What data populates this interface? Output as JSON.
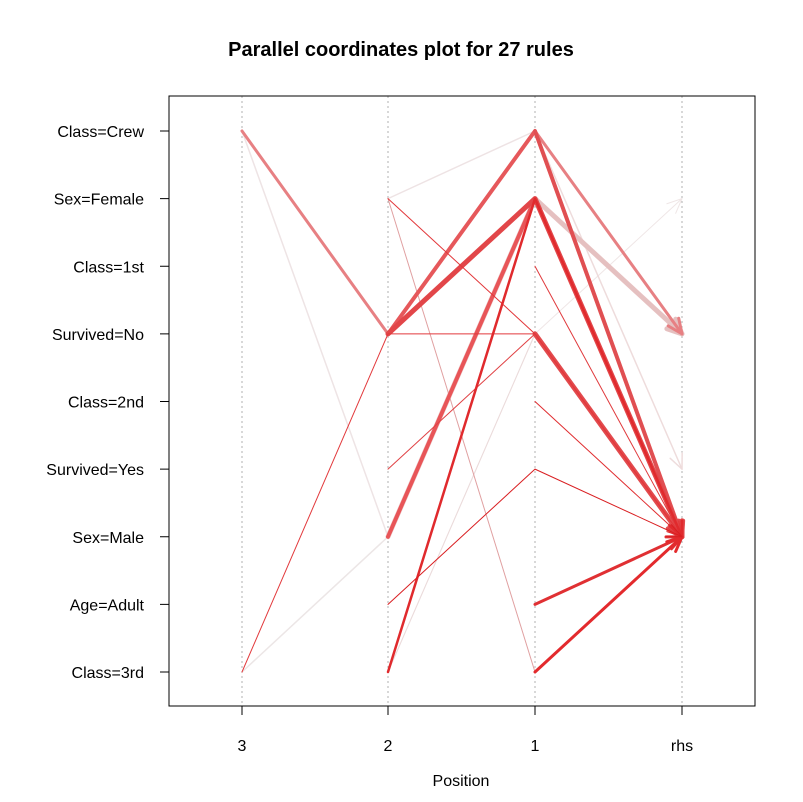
{
  "chart_data": {
    "type": "parallel-coordinates",
    "title": "Parallel coordinates plot for 27 rules",
    "xlabel": "Position",
    "x_ticks": [
      "3",
      "2",
      "1",
      "rhs"
    ],
    "y_categories": [
      "Class=Crew",
      "Sex=Female",
      "Class=1st",
      "Survived=No",
      "Class=2nd",
      "Survived=Yes",
      "Sex=Male",
      "Age=Adult",
      "Class=3rd"
    ],
    "grid": "vertical dotted lines at each position",
    "arrow_color_scale": [
      "#eeeeee",
      "#e41a1c"
    ],
    "rules": [
      {
        "path": [
          "Class=Crew",
          "Sex=Male"
        ],
        "color": "#e04f52",
        "width": 3.5
      },
      {
        "path": [
          "Class=Crew",
          "Survived=No"
        ],
        "color": "#ecdfe0",
        "width": 1.5
      },
      {
        "path": [
          "Sex=Female",
          "Class=Crew",
          "Survived=No"
        ],
        "color": "#eee3e4",
        "width": 1.5
      },
      {
        "path": [
          "Class=Crew",
          "Survived=Yes"
        ],
        "color": "#eedcdc",
        "width": 1.5
      },
      {
        "path": [
          "Survived=No",
          "Sex=Female",
          "Survived=No"
        ],
        "color": "#e5c0c0",
        "width": 4.5
      },
      {
        "path": [
          "Sex=Male",
          "Sex=Female",
          "Sex=Male"
        ],
        "color": "#e85558",
        "width": 4
      },
      {
        "path": [
          "Survived=No",
          "Sex=Female",
          "Sex=Male"
        ],
        "color": "#e24649",
        "width": 5
      },
      {
        "path": [
          "Sex=Male",
          "Sex=Female",
          "Survived=No"
        ],
        "color": "#eccaca",
        "width": 5
      },
      {
        "path": [
          "Class=Crew",
          "Sex=Male",
          "Sex=Female",
          "Survived=No"
        ],
        "color": "#eee4e5",
        "width": 1.5
      },
      {
        "path": [
          "Class=Crew",
          "Survived=No",
          "Class=Crew",
          "Survived=No"
        ],
        "color": "#e78083",
        "width": 3
      },
      {
        "path": [
          "Survived=No",
          "Class=Crew",
          "Sex=Male"
        ],
        "color": "#e56e70",
        "width": 3
      },
      {
        "path": [
          "Sex=Female",
          "Survived=No",
          "Sex=Male"
        ],
        "color": "#e2373a",
        "width": 1
      },
      {
        "path": [
          "Sex=Female",
          "Class=3rd",
          "Sex=Male"
        ],
        "color": "#e0a0a1",
        "width": 1
      },
      {
        "path": [
          "Class=3rd",
          "Sex=Female",
          "Sex=Male"
        ],
        "color": "#e02a2d",
        "width": 2.5
      },
      {
        "path": [
          "Class=3rd",
          "Sex=Male",
          "Sex=Female",
          "Sex=Male"
        ],
        "color": "#ece6e6",
        "width": 1.5
      },
      {
        "path": [
          "Class=3rd",
          "Survived=No",
          "Survived=No",
          "Sex=Male"
        ],
        "color": "#e2393c",
        "width": 1
      },
      {
        "path": [
          "Survived=No",
          "Sex=Male"
        ],
        "color": "#e24a4d",
        "width": 5
      },
      {
        "path": [
          "Class=3rd",
          "Survived=No",
          "Sex=Male"
        ],
        "color": "#ebdbdb",
        "width": 1
      },
      {
        "path": [
          "Survived=No",
          "Class=Crew",
          "Sex=Male"
        ],
        "color": "#e6585b",
        "width": 4
      },
      {
        "path": [
          "Class=3rd",
          "Sex=Male"
        ],
        "color": "#e32a2d",
        "width": 3
      },
      {
        "path": [
          "Age=Adult",
          "Sex=Male"
        ],
        "color": "#e03033",
        "width": 3
      },
      {
        "path": [
          "Class=1st",
          "Sex=Male"
        ],
        "color": "#e03a3d",
        "width": 1
      },
      {
        "path": [
          "Class=2nd",
          "Sex=Male"
        ],
        "color": "#e02d30",
        "width": 1
      },
      {
        "path": [
          "Age=Adult",
          "Survived=Yes",
          "Sex=Male"
        ],
        "color": "#d91e21",
        "width": 1
      },
      {
        "path": [
          "Class=3rd",
          "Sex=Female",
          "Sex=Male"
        ],
        "color": "#e03538",
        "width": 1
      },
      {
        "path": [
          "Class=3rd",
          "Survived=No",
          "Sex=Female"
        ],
        "color": "#efe6e6",
        "width": 1
      },
      {
        "path": [
          "Survived=Yes",
          "Survived=No",
          "Sex=Male"
        ],
        "color": "#e04144",
        "width": 1
      }
    ]
  }
}
